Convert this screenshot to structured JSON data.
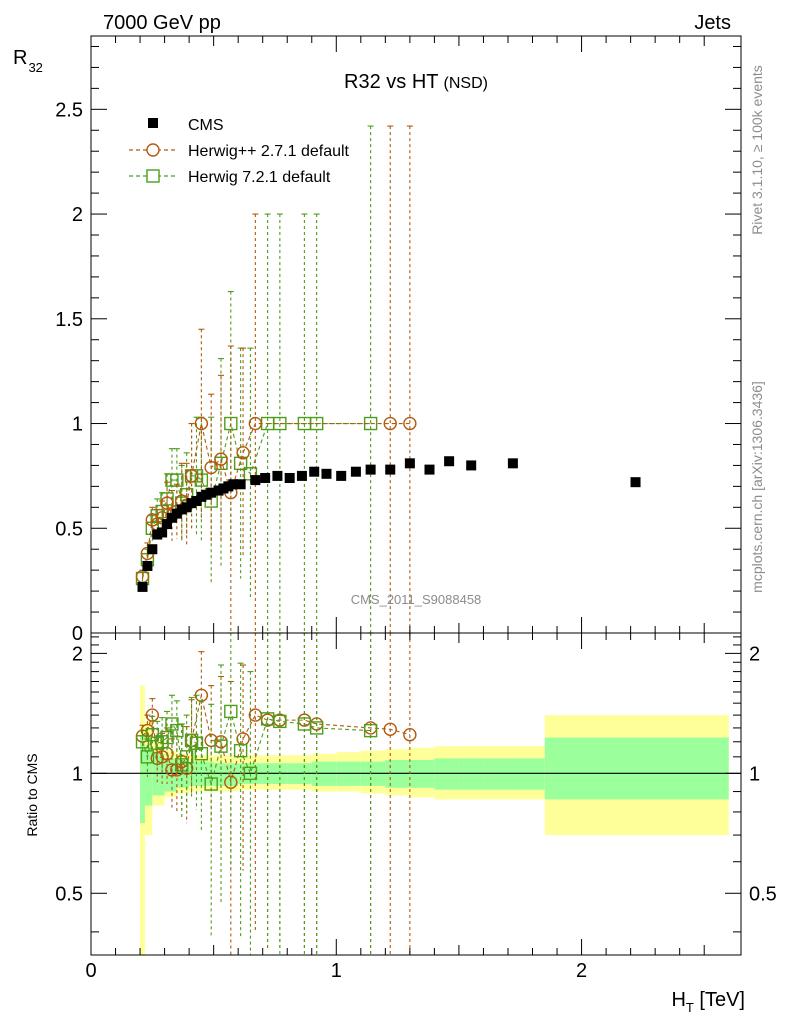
{
  "header": {
    "left": "7000 GeV pp",
    "right": "Jets"
  },
  "side_text": {
    "rivet": "Rivet 3.1.10, ≥ 100k events",
    "mcplots": "mcplots.cern.ch [arXiv:1306.3436]"
  },
  "chart_data": [
    {
      "type": "scatter",
      "panel": "main",
      "title": "R32 vs HT",
      "title_suffix": "(NSD)",
      "ylabel": "R",
      "ylabel_sub": "32",
      "analysis_tag": "CMS_2011_S9088458",
      "xlim": [
        0,
        2.65
      ],
      "ylim": [
        0,
        2.85
      ],
      "y_ticks": [
        "0.5",
        "1",
        "1.5",
        "2",
        "2.5"
      ],
      "y_tick_bottom": "0",
      "legend_position": "top-left",
      "series": [
        {
          "name": "CMS",
          "color": "#000000",
          "marker": "filled-square",
          "x": [
            0.21,
            0.23,
            0.25,
            0.27,
            0.29,
            0.31,
            0.33,
            0.35,
            0.37,
            0.39,
            0.41,
            0.43,
            0.45,
            0.47,
            0.49,
            0.52,
            0.54,
            0.56,
            0.58,
            0.61,
            0.67,
            0.71,
            0.76,
            0.81,
            0.86,
            0.91,
            0.96,
            1.02,
            1.08,
            1.14,
            1.22,
            1.3,
            1.38,
            1.46,
            1.55,
            1.72,
            2.22
          ],
          "y": [
            0.22,
            0.32,
            0.4,
            0.47,
            0.48,
            0.52,
            0.55,
            0.57,
            0.59,
            0.6,
            0.62,
            0.63,
            0.65,
            0.66,
            0.67,
            0.68,
            0.69,
            0.7,
            0.71,
            0.71,
            0.73,
            0.74,
            0.75,
            0.74,
            0.75,
            0.77,
            0.76,
            0.75,
            0.77,
            0.78,
            0.78,
            0.81,
            0.78,
            0.82,
            0.8,
            0.81,
            0.72
          ]
        },
        {
          "name": "Herwig++ 2.7.1 default",
          "color": "#b3590d",
          "marker": "open-circle",
          "x": [
            0.21,
            0.23,
            0.25,
            0.27,
            0.29,
            0.31,
            0.33,
            0.35,
            0.37,
            0.39,
            0.41,
            0.45,
            0.49,
            0.53,
            0.57,
            0.62,
            0.67,
            1.22,
            1.3
          ],
          "y": [
            0.27,
            0.38,
            0.54,
            0.52,
            0.55,
            0.62,
            0.56,
            0.58,
            0.63,
            0.61,
            0.75,
            1.0,
            0.79,
            0.83,
            0.67,
            0.86,
            1.0,
            1.0,
            1.0
          ],
          "y_err": [
            0.03,
            0.05,
            0.06,
            0.07,
            0.08,
            0.1,
            0.12,
            0.13,
            0.18,
            0.2,
            0.25,
            0.45,
            0.35,
            0.4,
            0.7,
            0.5,
            1.0,
            1.42,
            1.42
          ]
        },
        {
          "name": "Herwig 7.2.1 default",
          "color": "#4d9e1a",
          "marker": "open-square",
          "x": [
            0.21,
            0.23,
            0.25,
            0.27,
            0.29,
            0.31,
            0.33,
            0.35,
            0.37,
            0.39,
            0.41,
            0.43,
            0.45,
            0.49,
            0.53,
            0.57,
            0.61,
            0.65,
            0.72,
            0.77,
            0.87,
            0.92,
            1.14
          ],
          "y": [
            0.26,
            0.35,
            0.5,
            0.56,
            0.58,
            0.64,
            0.73,
            0.73,
            0.62,
            0.66,
            0.75,
            0.75,
            0.73,
            0.63,
            0.81,
            1.0,
            0.81,
            0.76,
            1.0,
            1.0,
            1.0,
            1.0,
            1.0
          ],
          "y_err": [
            0.03,
            0.05,
            0.06,
            0.08,
            0.09,
            0.12,
            0.15,
            0.15,
            0.18,
            0.2,
            0.25,
            0.28,
            0.3,
            0.4,
            0.5,
            0.63,
            0.55,
            0.6,
            1.0,
            1.0,
            1.0,
            1.0,
            1.42
          ]
        }
      ]
    },
    {
      "type": "scatter",
      "panel": "ratio",
      "ylabel": "Ratio to CMS",
      "xlabel": "H",
      "xlabel_sub": "T",
      "xlabel_unit": " [TeV]",
      "xlim": [
        0,
        2.65
      ],
      "ylim": [
        0.35,
        2.25
      ],
      "x_ticks": [
        "0",
        "1",
        "2"
      ],
      "y_ticks": [
        "0.5",
        "1",
        "2"
      ],
      "reference_line": 1,
      "bands": {
        "stat_color": "#9bff9b",
        "total_color": "#ffff99",
        "edges": [
          0.2,
          0.22,
          0.25,
          0.3,
          0.35,
          0.4,
          0.5,
          0.6,
          0.7,
          0.8,
          0.9,
          1.0,
          1.1,
          1.2,
          1.3,
          1.4,
          1.5,
          1.6,
          1.7,
          1.85,
          2.6
        ],
        "stat_lo": [
          0.75,
          0.83,
          0.88,
          0.9,
          0.92,
          0.93,
          0.93,
          0.94,
          0.94,
          0.94,
          0.93,
          0.93,
          0.93,
          0.92,
          0.92,
          0.91,
          0.91,
          0.91,
          0.91,
          0.86
        ],
        "stat_hi": [
          1.24,
          1.16,
          1.12,
          1.09,
          1.08,
          1.07,
          1.06,
          1.06,
          1.06,
          1.06,
          1.07,
          1.07,
          1.07,
          1.08,
          1.08,
          1.09,
          1.09,
          1.09,
          1.09,
          1.23
        ],
        "total_lo": [
          0.35,
          0.7,
          0.83,
          0.87,
          0.89,
          0.9,
          0.9,
          0.91,
          0.91,
          0.91,
          0.9,
          0.9,
          0.89,
          0.88,
          0.87,
          0.86,
          0.86,
          0.86,
          0.86,
          0.7
        ],
        "total_hi": [
          1.66,
          1.35,
          1.2,
          1.14,
          1.12,
          1.11,
          1.11,
          1.11,
          1.11,
          1.11,
          1.12,
          1.13,
          1.14,
          1.15,
          1.16,
          1.17,
          1.17,
          1.17,
          1.17,
          1.4
        ]
      },
      "series": [
        {
          "name": "Herwig++ 2.7.1 default",
          "color": "#b3590d",
          "marker": "open-circle",
          "x": [
            0.21,
            0.23,
            0.25,
            0.27,
            0.29,
            0.31,
            0.33,
            0.35,
            0.37,
            0.39,
            0.41,
            0.45,
            0.49,
            0.53,
            0.57,
            0.62,
            0.67,
            0.72,
            0.77,
            0.87,
            0.92,
            1.14,
            1.22,
            1.3
          ],
          "y": [
            1.24,
            1.28,
            1.4,
            1.09,
            1.1,
            1.12,
            1.02,
            1.02,
            1.07,
            1.03,
            1.21,
            1.57,
            1.21,
            1.2,
            0.95,
            1.22,
            1.4,
            1.36,
            1.36,
            1.36,
            1.33,
            1.3,
            1.29,
            1.25
          ],
          "y_err": [
            0.08,
            0.12,
            0.14,
            0.14,
            0.16,
            0.18,
            0.2,
            0.22,
            0.26,
            0.28,
            0.32,
            0.45,
            0.45,
            0.55,
            0.75,
            0.65,
            1.0,
            1.0,
            1.0,
            1.0,
            1.0,
            1.0,
            1.0,
            1.0
          ]
        },
        {
          "name": "Herwig 7.2.1 default",
          "color": "#4d9e1a",
          "marker": "open-square",
          "x": [
            0.21,
            0.23,
            0.25,
            0.27,
            0.29,
            0.31,
            0.33,
            0.35,
            0.37,
            0.39,
            0.41,
            0.43,
            0.45,
            0.49,
            0.53,
            0.57,
            0.61,
            0.65,
            0.72,
            0.77,
            0.87,
            0.92,
            1.14
          ],
          "y": [
            1.2,
            1.1,
            1.25,
            1.19,
            1.2,
            1.23,
            1.33,
            1.28,
            1.05,
            1.1,
            1.21,
            1.19,
            1.12,
            0.94,
            1.17,
            1.43,
            1.14,
            1.0,
            1.37,
            1.35,
            1.33,
            1.3,
            1.28
          ],
          "y_err": [
            0.08,
            0.12,
            0.14,
            0.16,
            0.18,
            0.2,
            0.24,
            0.24,
            0.28,
            0.3,
            0.34,
            0.38,
            0.4,
            0.55,
            0.7,
            0.85,
            0.75,
            0.8,
            1.0,
            1.0,
            1.0,
            1.0,
            1.0
          ]
        }
      ]
    }
  ]
}
